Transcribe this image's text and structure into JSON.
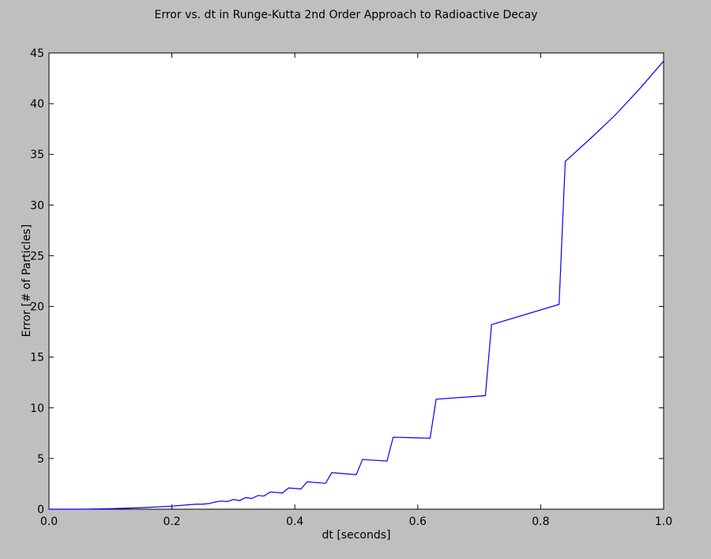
{
  "chart_data": {
    "type": "line",
    "title": "Error vs. dt in Runge-Kutta 2nd Order Approach to Radioactive Decay",
    "xlabel": "dt [seconds]",
    "ylabel": "Error [# of Particles]",
    "xlim": [
      0.0,
      1.0
    ],
    "ylim": [
      0,
      45
    ],
    "xticks": [
      0.0,
      0.2,
      0.4,
      0.6,
      0.8,
      1.0
    ],
    "xtick_labels": [
      "0.0",
      "0.2",
      "0.4",
      "0.6",
      "0.8",
      "1.0"
    ],
    "yticks": [
      0,
      5,
      10,
      15,
      20,
      25,
      30,
      35,
      40,
      45
    ],
    "ytick_labels": [
      "0",
      "5",
      "10",
      "15",
      "20",
      "25",
      "30",
      "35",
      "40",
      "45"
    ],
    "grid": false,
    "series": [
      {
        "color": "#0000ff",
        "x": [
          0.0,
          0.05,
          0.1,
          0.15,
          0.2,
          0.22,
          0.24,
          0.25,
          0.26,
          0.27,
          0.28,
          0.29,
          0.3,
          0.31,
          0.32,
          0.33,
          0.34,
          0.35,
          0.36,
          0.38,
          0.39,
          0.41,
          0.42,
          0.45,
          0.46,
          0.5,
          0.51,
          0.55,
          0.56,
          0.62,
          0.63,
          0.71,
          0.72,
          0.83,
          0.84,
          0.88,
          0.92,
          0.96,
          1.0
        ],
        "y": [
          0.0,
          0.0,
          0.05,
          0.15,
          0.3,
          0.4,
          0.5,
          0.5,
          0.55,
          0.7,
          0.8,
          0.75,
          0.95,
          0.85,
          1.15,
          1.05,
          1.35,
          1.3,
          1.7,
          1.6,
          2.1,
          2.0,
          2.7,
          2.55,
          3.6,
          3.4,
          4.9,
          4.75,
          7.1,
          7.0,
          10.85,
          11.2,
          18.2,
          20.2,
          34.3,
          36.5,
          38.8,
          41.4,
          44.2
        ]
      }
    ]
  }
}
